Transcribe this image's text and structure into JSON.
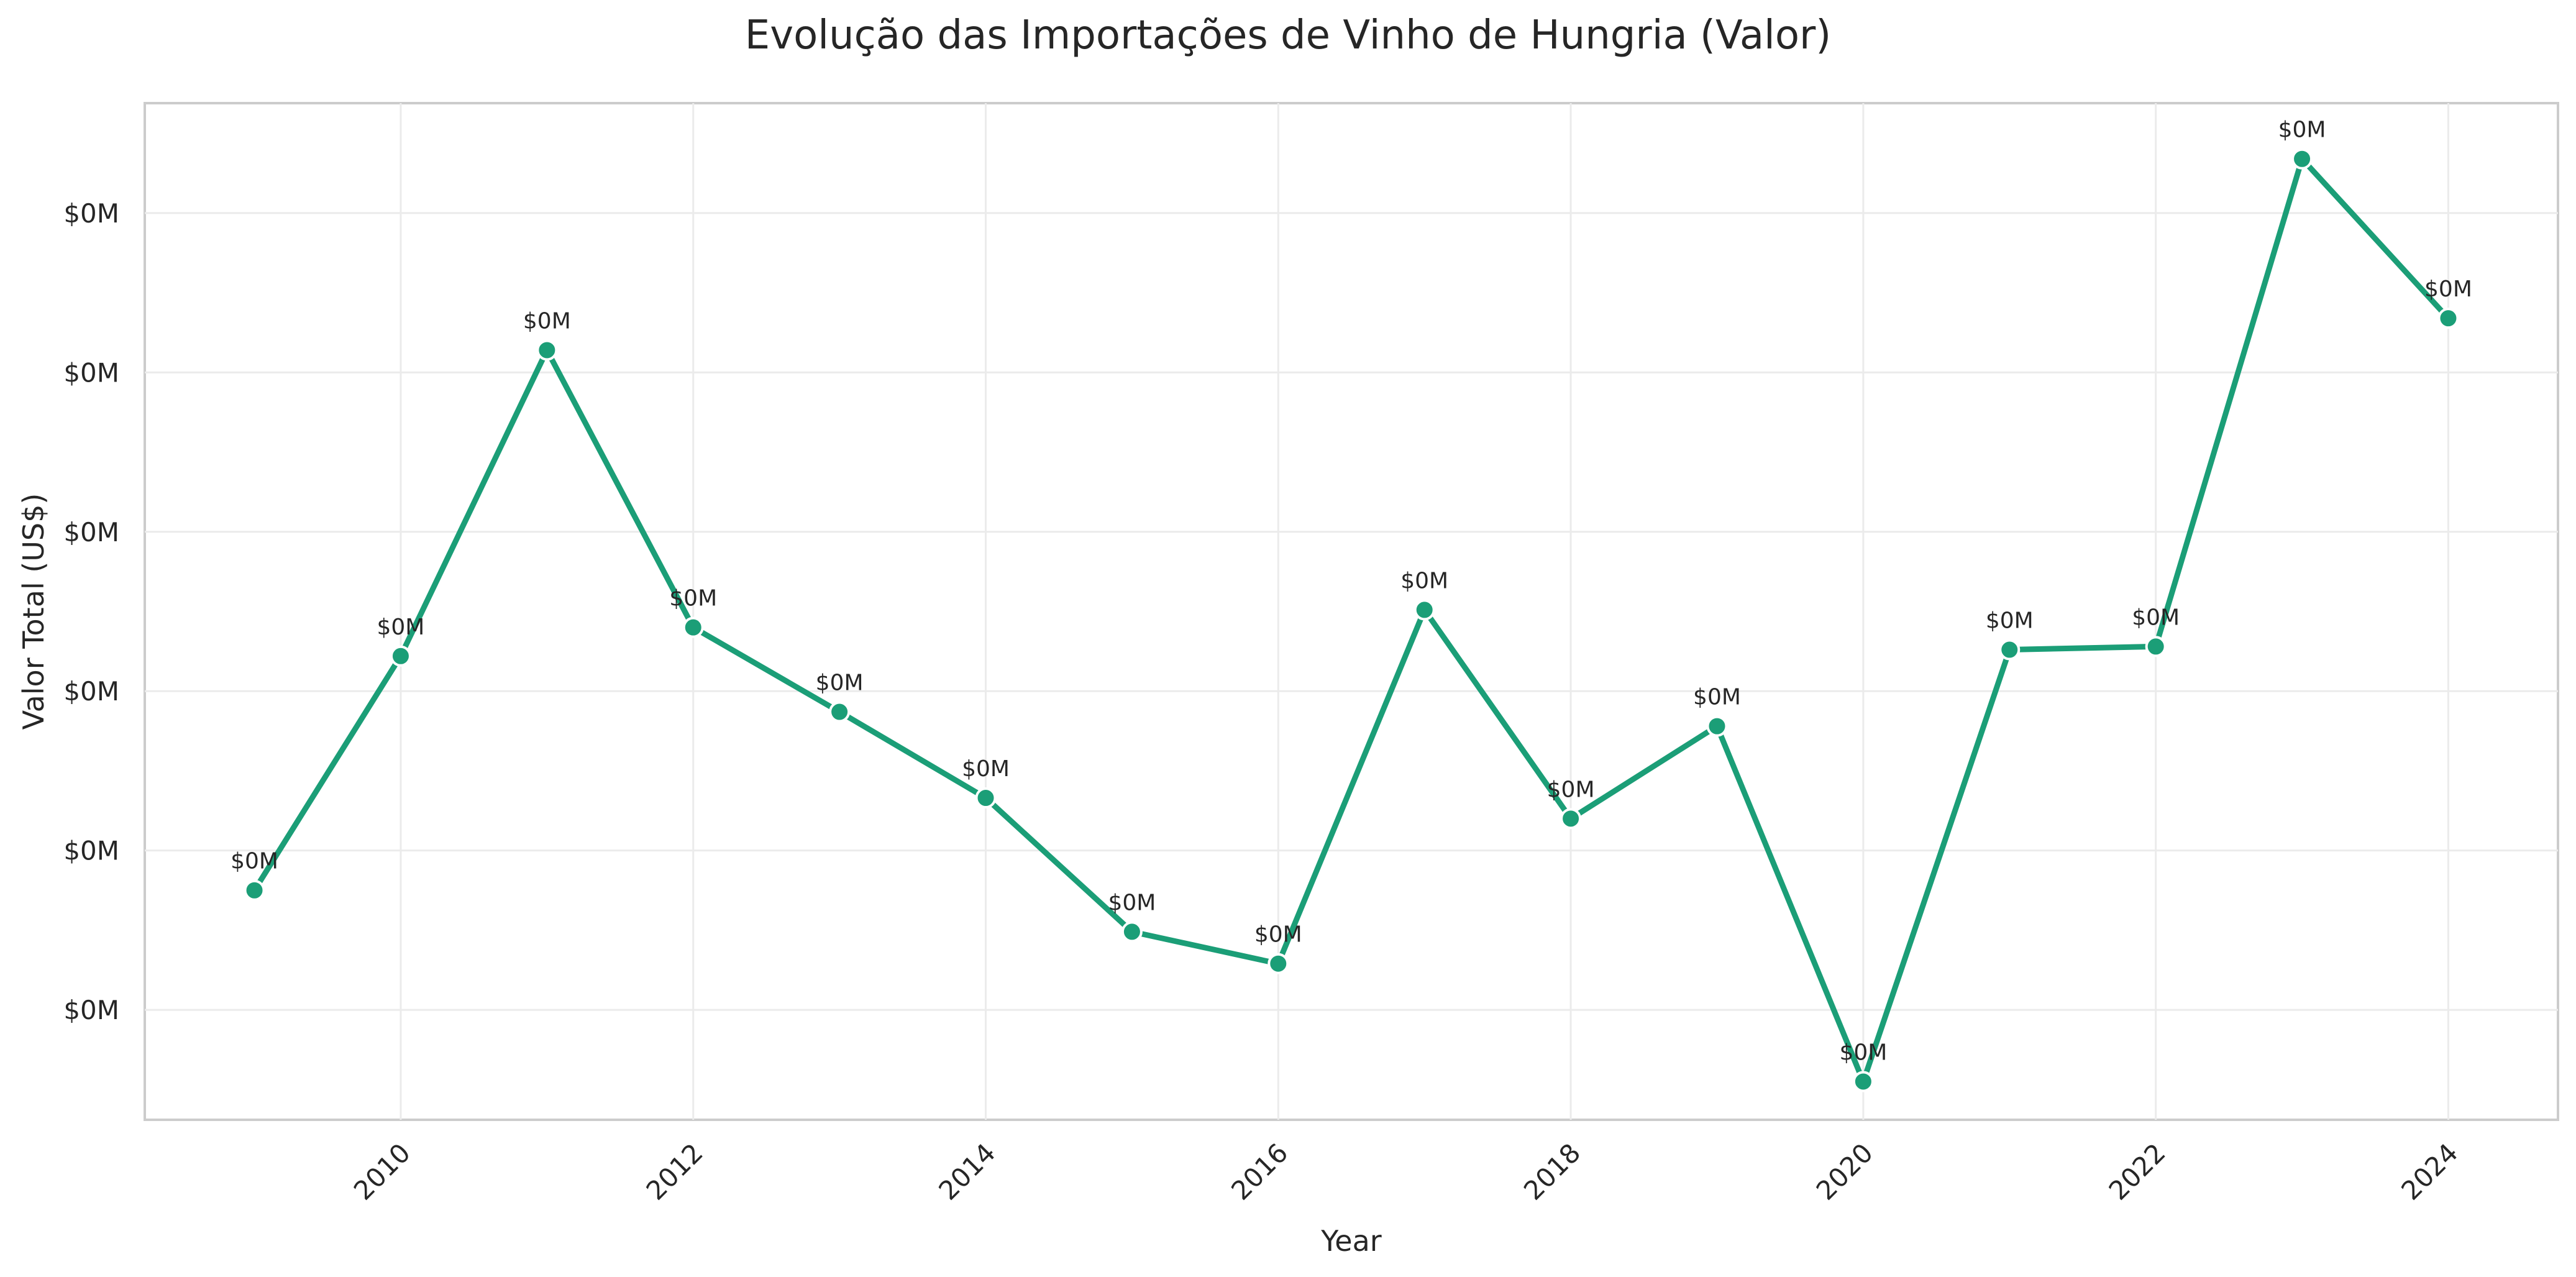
{
  "chart_data": {
    "type": "line",
    "title": "Evolução das Importações de Vinho de Hungria (Valor)",
    "xlabel": "Year",
    "ylabel": "Valor Total (US$)",
    "x_tick_labels": [
      "2010",
      "2012",
      "2014",
      "2016",
      "2018",
      "2020",
      "2022",
      "2024"
    ],
    "x_ticks": [
      2010,
      2012,
      2014,
      2016,
      2018,
      2020,
      2022,
      2024
    ],
    "y_tick_labels": [
      "$0M",
      "$0M",
      "$0M",
      "$0M",
      "$0M",
      "$0M"
    ],
    "y_ticks": [
      20000,
      30000,
      40000,
      50000,
      60000,
      70000
    ],
    "xlim": [
      2008.25,
      2024.75
    ],
    "ylim": [
      13100,
      76900
    ],
    "grid": true,
    "line_color": "#1b9e77",
    "series": [
      {
        "x": [
          2009,
          2010,
          2011,
          2012,
          2013,
          2014,
          2015,
          2016,
          2017,
          2018,
          2019,
          2020,
          2021,
          2022,
          2023,
          2024
        ],
        "values": [
          27500,
          42200,
          61400,
          44000,
          38700,
          33300,
          24900,
          22900,
          45100,
          32000,
          37800,
          15500,
          42600,
          42800,
          73400,
          63400
        ],
        "data_labels": [
          "$0M",
          "$0M",
          "$0M",
          "$0M",
          "$0M",
          "$0M",
          "$0M",
          "$0M",
          "$0M",
          "$0M",
          "$0M",
          "$0M",
          "$0M",
          "$0M",
          "$0M",
          "$0M"
        ]
      }
    ]
  }
}
